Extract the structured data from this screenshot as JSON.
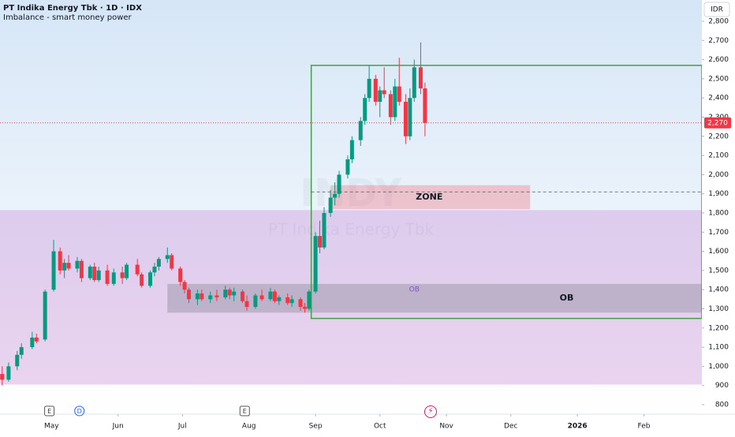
{
  "chart_data": {
    "type": "candlestick",
    "title": "PT Indika Energy Tbk · 1D · IDX",
    "subtitle": "Imbalance - smart money power",
    "currency": "IDR",
    "watermark": "INDY",
    "watermark_sub": "PT Indika Energy Tbk",
    "up_color": "#089981",
    "down_color": "#f23645",
    "xlim": [
      "2025-04-07",
      "2026-02-28"
    ],
    "ylim": [
      800,
      2800
    ],
    "yticks": [
      800,
      900,
      {
        "value": 1000,
        "label": "1,000"
      },
      {
        "value": 1100,
        "label": "1,100"
      },
      {
        "value": 1200,
        "label": "1,200"
      },
      {
        "value": 1300,
        "label": "1,300"
      },
      {
        "value": 1400,
        "label": "1,400"
      },
      {
        "value": 1500,
        "label": "1,500"
      },
      {
        "value": 1600,
        "label": "1,600"
      },
      {
        "value": 1700,
        "label": "1,700"
      },
      {
        "value": 1800,
        "label": "1,800"
      },
      {
        "value": 1900,
        "label": "1,900"
      },
      {
        "value": 2000,
        "label": "2,000"
      },
      {
        "value": 2100,
        "label": "2,100"
      },
      {
        "value": 2200,
        "label": "2,200"
      },
      {
        "value": 2300,
        "label": "2,300"
      },
      {
        "value": 2400,
        "label": "2,400"
      },
      {
        "value": 2500,
        "label": "2,500"
      },
      {
        "value": 2600,
        "label": "2,600"
      },
      {
        "value": 2700,
        "label": "2,700"
      },
      {
        "value": 2800,
        "label": "2,800"
      }
    ],
    "xticks": [
      {
        "value": "2025-05-01",
        "label": "May"
      },
      {
        "value": "2025-06-01",
        "label": "Jun"
      },
      {
        "value": "2025-07-01",
        "label": "Jul"
      },
      {
        "value": "2025-08-01",
        "label": "Aug"
      },
      {
        "value": "2025-09-01",
        "label": "Sep"
      },
      {
        "value": "2025-10-01",
        "label": "Oct"
      },
      {
        "value": "2025-11-01",
        "label": "Nov"
      },
      {
        "value": "2025-12-01",
        "label": "Dec"
      },
      {
        "value": "2026-01-01",
        "label": "2026"
      },
      {
        "value": "2026-02-01",
        "label": "Feb"
      }
    ],
    "last_price": 2270,
    "last_price_label": "2,270",
    "dashed_level": {
      "from": "2025-08-30",
      "value": 1910
    },
    "boxes": [
      {
        "from": "2025-04-07",
        "to": "2026-02-28",
        "low": 905,
        "high": 1815,
        "color": "rgba(186,104,200,0.28)"
      },
      {
        "from": "2025-06-24",
        "to": "2026-02-28",
        "low": 1280,
        "high": 1430,
        "color": "rgba(120,123,134,0.35)",
        "label": "OB",
        "label_at": "2025-12-27"
      },
      {
        "from": "2025-08-30",
        "to": "2026-02-28",
        "low": 1250,
        "high": 2570,
        "color": "none",
        "border": "#43a047"
      },
      {
        "from": "2025-09-08",
        "to": "2025-12-10",
        "low": 1820,
        "high": 1945,
        "color": "rgba(242,54,69,0.25)",
        "label": "ZONE",
        "label_at": "2025-10-24"
      }
    ],
    "small_label": {
      "text": "OB",
      "date": "2025-10-17",
      "value": 1400
    },
    "events": [
      {
        "date": "2025-04-30",
        "label": "E"
      },
      {
        "date": "2025-05-14",
        "label": "D"
      },
      {
        "date": "2025-07-30",
        "label": "E"
      }
    ],
    "candles": [
      [
        "2025-04-08",
        960,
        1000,
        900,
        930
      ],
      [
        "2025-04-11",
        930,
        1020,
        920,
        1000
      ],
      [
        "2025-04-15",
        1000,
        1080,
        980,
        1060
      ],
      [
        "2025-04-17",
        1060,
        1120,
        1040,
        1100
      ],
      [
        "2025-04-22",
        1100,
        1180,
        1090,
        1150
      ],
      [
        "2025-04-24",
        1150,
        1170,
        1120,
        1130
      ],
      [
        "2025-04-28",
        1140,
        1400,
        1130,
        1390
      ],
      [
        "2025-05-02",
        1400,
        1660,
        1390,
        1600
      ],
      [
        "2025-05-05",
        1600,
        1620,
        1480,
        1500
      ],
      [
        "2025-05-07",
        1500,
        1560,
        1460,
        1540
      ],
      [
        "2025-05-09",
        1540,
        1580,
        1500,
        1510
      ],
      [
        "2025-05-13",
        1510,
        1570,
        1490,
        1550
      ],
      [
        "2025-05-15",
        1550,
        1560,
        1440,
        1460
      ],
      [
        "2025-05-19",
        1460,
        1530,
        1450,
        1520
      ],
      [
        "2025-05-21",
        1520,
        1540,
        1440,
        1450
      ],
      [
        "2025-05-23",
        1450,
        1520,
        1440,
        1500
      ],
      [
        "2025-05-27",
        1500,
        1530,
        1420,
        1430
      ],
      [
        "2025-05-30",
        1430,
        1510,
        1420,
        1490
      ],
      [
        "2025-06-03",
        1490,
        1520,
        1430,
        1460
      ],
      [
        "2025-06-05",
        1460,
        1540,
        1450,
        1530
      ],
      [
        "2025-06-10",
        1530,
        1560,
        1470,
        1480
      ],
      [
        "2025-06-12",
        1480,
        1490,
        1410,
        1420
      ],
      [
        "2025-06-16",
        1420,
        1500,
        1410,
        1490
      ],
      [
        "2025-06-18",
        1490,
        1540,
        1470,
        1520
      ],
      [
        "2025-06-20",
        1520,
        1570,
        1500,
        1560
      ],
      [
        "2025-06-24",
        1560,
        1620,
        1540,
        1580
      ],
      [
        "2025-06-26",
        1580,
        1590,
        1500,
        1510
      ],
      [
        "2025-06-30",
        1510,
        1520,
        1420,
        1440
      ],
      [
        "2025-07-02",
        1440,
        1450,
        1380,
        1400
      ],
      [
        "2025-07-04",
        1400,
        1410,
        1330,
        1350
      ],
      [
        "2025-07-08",
        1350,
        1400,
        1320,
        1380
      ],
      [
        "2025-07-10",
        1380,
        1400,
        1340,
        1350
      ],
      [
        "2025-07-14",
        1350,
        1390,
        1330,
        1370
      ],
      [
        "2025-07-17",
        1370,
        1400,
        1340,
        1360
      ],
      [
        "2025-07-21",
        1360,
        1420,
        1350,
        1400
      ],
      [
        "2025-07-23",
        1400,
        1410,
        1350,
        1370
      ],
      [
        "2025-07-25",
        1370,
        1410,
        1340,
        1390
      ],
      [
        "2025-07-29",
        1390,
        1400,
        1330,
        1340
      ],
      [
        "2025-07-31",
        1340,
        1370,
        1290,
        1310
      ],
      [
        "2025-08-04",
        1310,
        1380,
        1300,
        1370
      ],
      [
        "2025-08-07",
        1370,
        1400,
        1340,
        1350
      ],
      [
        "2025-08-11",
        1350,
        1410,
        1340,
        1390
      ],
      [
        "2025-08-13",
        1390,
        1400,
        1330,
        1340
      ],
      [
        "2025-08-15",
        1340,
        1370,
        1320,
        1360
      ],
      [
        "2025-08-19",
        1360,
        1380,
        1320,
        1330
      ],
      [
        "2025-08-21",
        1330,
        1370,
        1310,
        1350
      ],
      [
        "2025-08-25",
        1350,
        1360,
        1290,
        1310
      ],
      [
        "2025-08-27",
        1310,
        1330,
        1280,
        1300
      ],
      [
        "2025-08-29",
        1300,
        1400,
        1290,
        1390
      ],
      [
        "2025-09-01",
        1390,
        1700,
        1380,
        1680
      ],
      [
        "2025-09-03",
        1680,
        1760,
        1590,
        1620
      ],
      [
        "2025-09-05",
        1620,
        1830,
        1610,
        1800
      ],
      [
        "2025-09-08",
        1800,
        1920,
        1780,
        1880
      ],
      [
        "2025-09-10",
        1880,
        1960,
        1840,
        1900
      ],
      [
        "2025-09-12",
        1900,
        2020,
        1880,
        2000
      ],
      [
        "2025-09-16",
        2000,
        2100,
        1980,
        2080
      ],
      [
        "2025-09-18",
        2080,
        2200,
        2060,
        2180
      ],
      [
        "2025-09-22",
        2180,
        2300,
        2150,
        2280
      ],
      [
        "2025-09-24",
        2280,
        2420,
        2260,
        2400
      ],
      [
        "2025-09-26",
        2400,
        2570,
        2380,
        2500
      ],
      [
        "2025-09-29",
        2500,
        2520,
        2360,
        2380
      ],
      [
        "2025-10-01",
        2380,
        2460,
        2300,
        2440
      ],
      [
        "2025-10-03",
        2440,
        2560,
        2400,
        2420
      ],
      [
        "2025-10-06",
        2420,
        2440,
        2260,
        2300
      ],
      [
        "2025-10-08",
        2300,
        2500,
        2280,
        2460
      ],
      [
        "2025-10-10",
        2460,
        2610,
        2360,
        2380
      ],
      [
        "2025-10-13",
        2380,
        2420,
        2160,
        2200
      ],
      [
        "2025-10-15",
        2200,
        2450,
        2180,
        2400
      ],
      [
        "2025-10-17",
        2400,
        2600,
        2380,
        2560
      ],
      [
        "2025-10-20",
        2560,
        2690,
        2420,
        2450
      ],
      [
        "2025-10-22",
        2450,
        2480,
        2200,
        2270
      ]
    ]
  }
}
